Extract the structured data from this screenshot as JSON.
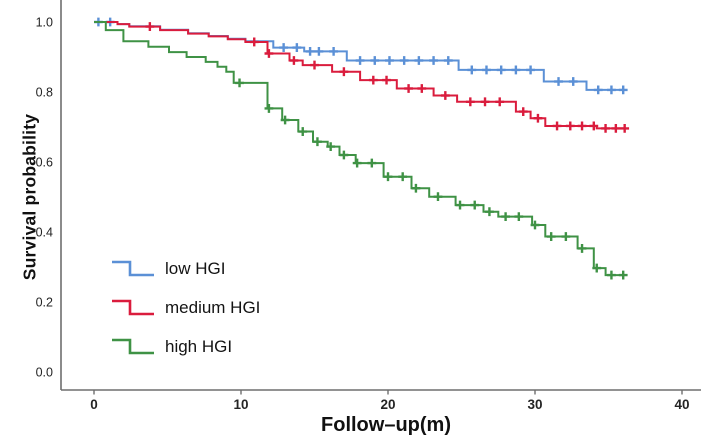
{
  "chart_data": {
    "type": "line",
    "subtype": "kaplan-meier-step-curves",
    "title": "",
    "xlabel": "Follow–up(m)",
    "ylabel": "Survival probability",
    "x_ticks": [
      "0",
      "10",
      "20",
      "30",
      "40"
    ],
    "x_tick_values": [
      0,
      10,
      20,
      30,
      40
    ],
    "y_ticks": [
      "0.0",
      "0.2",
      "0.4",
      "0.6",
      "0.8",
      "1.0"
    ],
    "y_tick_values": [
      0.0,
      0.2,
      0.4,
      0.6,
      0.8,
      1.0
    ],
    "xlim": [
      -2.2,
      41.3
    ],
    "ylim": [
      0.0,
      1.05
    ],
    "grid": false,
    "legend_position": "inside-lower-left",
    "axis_color": "#6e6e6e",
    "tick_label_color": "#242424",
    "censor_marker": "plus",
    "series": [
      {
        "name": "low HGI",
        "color": "#5b90d6",
        "steps": [
          [
            0,
            1.0
          ],
          [
            1.6,
            0.994
          ],
          [
            2.4,
            0.988
          ],
          [
            4.5,
            0.978
          ],
          [
            6.4,
            0.968
          ],
          [
            7.8,
            0.96
          ],
          [
            9.1,
            0.952
          ],
          [
            10.3,
            0.945
          ],
          [
            12.2,
            0.927
          ],
          [
            14.3,
            0.916
          ],
          [
            17.2,
            0.89
          ],
          [
            24.8,
            0.863
          ],
          [
            30.6,
            0.83
          ],
          [
            33.5,
            0.806
          ],
          [
            36.1,
            0.806
          ]
        ],
        "censors": [
          [
            0.3,
            1.0
          ],
          [
            1.1,
            1.0
          ],
          [
            12.9,
            0.927
          ],
          [
            13.8,
            0.927
          ],
          [
            14.7,
            0.916
          ],
          [
            15.3,
            0.916
          ],
          [
            16.3,
            0.916
          ],
          [
            18.1,
            0.89
          ],
          [
            19.1,
            0.89
          ],
          [
            20.1,
            0.89
          ],
          [
            21.1,
            0.89
          ],
          [
            22.1,
            0.89
          ],
          [
            23.1,
            0.89
          ],
          [
            24.1,
            0.89
          ],
          [
            25.7,
            0.863
          ],
          [
            26.7,
            0.863
          ],
          [
            27.7,
            0.863
          ],
          [
            28.7,
            0.863
          ],
          [
            29.7,
            0.863
          ],
          [
            31.6,
            0.83
          ],
          [
            32.6,
            0.83
          ],
          [
            34.3,
            0.806
          ],
          [
            35.2,
            0.806
          ],
          [
            36.0,
            0.806
          ]
        ]
      },
      {
        "name": "medium HGI",
        "color": "#da1c3d",
        "steps": [
          [
            0,
            1.0
          ],
          [
            1.6,
            0.994
          ],
          [
            2.4,
            0.987
          ],
          [
            4.5,
            0.977
          ],
          [
            6.4,
            0.967
          ],
          [
            7.8,
            0.959
          ],
          [
            9.1,
            0.951
          ],
          [
            10.3,
            0.943
          ],
          [
            11.8,
            0.91
          ],
          [
            13.3,
            0.89
          ],
          [
            14.2,
            0.877
          ],
          [
            16.2,
            0.858
          ],
          [
            18.1,
            0.834
          ],
          [
            20.6,
            0.81
          ],
          [
            23.1,
            0.79
          ],
          [
            24.7,
            0.772
          ],
          [
            28.7,
            0.744
          ],
          [
            29.7,
            0.725
          ],
          [
            30.7,
            0.703
          ],
          [
            34.2,
            0.696
          ],
          [
            36.1,
            0.696
          ]
        ],
        "censors": [
          [
            3.8,
            0.987
          ],
          [
            10.9,
            0.943
          ],
          [
            11.9,
            0.91
          ],
          [
            13.6,
            0.89
          ],
          [
            15.0,
            0.877
          ],
          [
            17.0,
            0.858
          ],
          [
            19.0,
            0.834
          ],
          [
            19.9,
            0.834
          ],
          [
            21.4,
            0.81
          ],
          [
            22.3,
            0.81
          ],
          [
            23.9,
            0.79
          ],
          [
            25.6,
            0.772
          ],
          [
            26.6,
            0.772
          ],
          [
            27.6,
            0.772
          ],
          [
            29.2,
            0.744
          ],
          [
            30.2,
            0.725
          ],
          [
            31.5,
            0.703
          ],
          [
            32.4,
            0.703
          ],
          [
            33.2,
            0.703
          ],
          [
            34.0,
            0.703
          ],
          [
            34.8,
            0.696
          ],
          [
            35.5,
            0.696
          ],
          [
            36.1,
            0.696
          ]
        ]
      },
      {
        "name": "high HGI",
        "color": "#3f9245",
        "steps": [
          [
            0,
            1.0
          ],
          [
            0.8,
            0.977
          ],
          [
            2.0,
            0.945
          ],
          [
            3.7,
            0.929
          ],
          [
            5.1,
            0.914
          ],
          [
            6.3,
            0.9
          ],
          [
            7.6,
            0.886
          ],
          [
            8.4,
            0.872
          ],
          [
            9.0,
            0.858
          ],
          [
            9.5,
            0.826
          ],
          [
            11.8,
            0.753
          ],
          [
            12.8,
            0.72
          ],
          [
            13.9,
            0.687
          ],
          [
            14.9,
            0.658
          ],
          [
            15.9,
            0.644
          ],
          [
            16.7,
            0.62
          ],
          [
            17.8,
            0.597
          ],
          [
            19.7,
            0.558
          ],
          [
            21.6,
            0.525
          ],
          [
            22.8,
            0.501
          ],
          [
            24.6,
            0.477
          ],
          [
            26.5,
            0.458
          ],
          [
            27.5,
            0.444
          ],
          [
            29.8,
            0.42
          ],
          [
            30.7,
            0.387
          ],
          [
            32.9,
            0.353
          ],
          [
            34.0,
            0.297
          ],
          [
            34.8,
            0.277
          ],
          [
            36.1,
            0.277
          ]
        ],
        "censors": [
          [
            9.9,
            0.826
          ],
          [
            11.9,
            0.753
          ],
          [
            13.0,
            0.72
          ],
          [
            14.2,
            0.687
          ],
          [
            15.2,
            0.658
          ],
          [
            16.1,
            0.644
          ],
          [
            17.0,
            0.62
          ],
          [
            17.9,
            0.597
          ],
          [
            18.9,
            0.597
          ],
          [
            20.0,
            0.558
          ],
          [
            21.0,
            0.558
          ],
          [
            21.9,
            0.525
          ],
          [
            23.4,
            0.501
          ],
          [
            24.9,
            0.477
          ],
          [
            25.9,
            0.477
          ],
          [
            26.9,
            0.458
          ],
          [
            28.0,
            0.444
          ],
          [
            28.9,
            0.444
          ],
          [
            30.0,
            0.42
          ],
          [
            31.1,
            0.387
          ],
          [
            32.1,
            0.387
          ],
          [
            33.2,
            0.353
          ],
          [
            34.2,
            0.297
          ],
          [
            35.2,
            0.277
          ],
          [
            36.0,
            0.277
          ]
        ]
      }
    ]
  }
}
